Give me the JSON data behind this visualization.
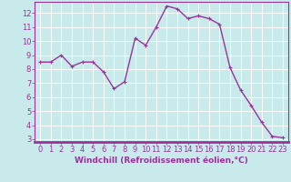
{
  "x": [
    0,
    1,
    2,
    3,
    4,
    5,
    6,
    7,
    8,
    9,
    10,
    11,
    12,
    13,
    14,
    15,
    16,
    17,
    18,
    19,
    20,
    21,
    22,
    23
  ],
  "y": [
    8.5,
    8.5,
    9.0,
    8.2,
    8.5,
    8.5,
    7.8,
    6.6,
    7.1,
    10.2,
    9.7,
    11.0,
    12.5,
    12.3,
    11.6,
    11.8,
    11.6,
    11.2,
    8.1,
    6.5,
    5.4,
    4.2,
    3.2,
    3.1
  ],
  "line_color": "#993399",
  "marker": "+",
  "marker_size": 3,
  "xlabel": "Windchill (Refroidissement éolien,°C)",
  "xlim": [
    -0.5,
    23.5
  ],
  "ylim": [
    2.8,
    12.8
  ],
  "yticks": [
    3,
    4,
    5,
    6,
    7,
    8,
    9,
    10,
    11,
    12
  ],
  "xticks": [
    0,
    1,
    2,
    3,
    4,
    5,
    6,
    7,
    8,
    9,
    10,
    11,
    12,
    13,
    14,
    15,
    16,
    17,
    18,
    19,
    20,
    21,
    22,
    23
  ],
  "background_color": "#c8eaea",
  "grid_color": "#ffffff",
  "tick_color": "#993399",
  "label_color": "#993399",
  "xlabel_fontsize": 6.5,
  "tick_fontsize": 6,
  "linewidth": 1.0,
  "spine_color": "#993399"
}
